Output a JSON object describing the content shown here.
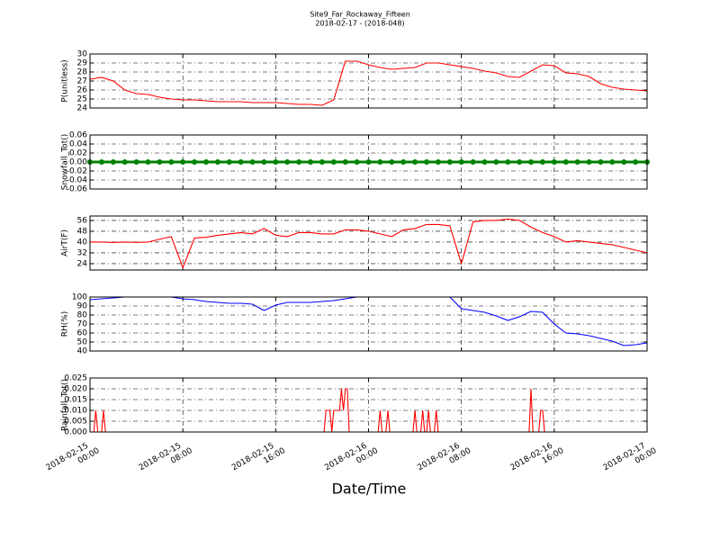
{
  "chart_data": [
    {
      "type": "line",
      "title": "Site9_Far_Rockaway_Fifteen",
      "subtitle": "2018-02-17 - (2018-048)",
      "ylabel": "P(unitless)",
      "color": "#ff0000",
      "grid": true,
      "xlim": [
        "2018-02-15 00:00",
        "2018-02-17 00:00"
      ],
      "ylim": [
        24,
        30
      ],
      "yticks": [
        24,
        25,
        26,
        27,
        28,
        29,
        30
      ],
      "x": [
        "2018-02-15 00:00",
        "2018-02-15 01:00",
        "2018-02-15 02:00",
        "2018-02-15 03:00",
        "2018-02-15 04:00",
        "2018-02-15 05:00",
        "2018-02-15 06:00",
        "2018-02-15 07:00",
        "2018-02-15 08:00",
        "2018-02-15 09:00",
        "2018-02-15 10:00",
        "2018-02-15 11:00",
        "2018-02-15 12:00",
        "2018-02-15 13:00",
        "2018-02-15 14:00",
        "2018-02-15 15:00",
        "2018-02-15 16:00",
        "2018-02-15 17:00",
        "2018-02-15 18:00",
        "2018-02-15 19:00",
        "2018-02-15 20:00",
        "2018-02-15 21:00",
        "2018-02-15 22:00",
        "2018-02-15 23:00",
        "2018-02-16 00:00",
        "2018-02-16 01:00",
        "2018-02-16 02:00",
        "2018-02-16 03:00",
        "2018-02-16 04:00",
        "2018-02-16 05:00",
        "2018-02-16 06:00",
        "2018-02-16 07:00",
        "2018-02-16 08:00",
        "2018-02-16 09:00",
        "2018-02-16 10:00",
        "2018-02-16 11:00",
        "2018-02-16 12:00",
        "2018-02-16 13:00",
        "2018-02-16 14:00",
        "2018-02-16 15:00",
        "2018-02-16 16:00",
        "2018-02-16 17:00",
        "2018-02-16 18:00",
        "2018-02-16 19:00",
        "2018-02-16 20:00",
        "2018-02-16 21:00",
        "2018-02-16 22:00",
        "2018-02-16 23:00",
        "2018-02-17 00:00"
      ],
      "values": [
        27.2,
        27.4,
        27.0,
        26.0,
        25.6,
        25.5,
        25.2,
        25.0,
        24.9,
        24.9,
        24.8,
        24.7,
        24.7,
        24.7,
        24.6,
        24.6,
        24.6,
        24.5,
        24.4,
        24.4,
        24.3,
        24.9,
        29.2,
        29.2,
        28.8,
        28.5,
        28.3,
        28.4,
        28.5,
        29.0,
        29.0,
        28.8,
        28.6,
        28.4,
        28.1,
        27.9,
        27.5,
        27.4,
        28.1,
        28.8,
        28.7,
        27.9,
        27.8,
        27.5,
        26.7,
        26.3,
        26.1,
        26.0,
        25.9
      ]
    },
    {
      "type": "line",
      "ylabel": "Snowfall_Tot()",
      "color": "#008000",
      "grid": true,
      "xlim": [
        "2018-02-15 00:00",
        "2018-02-17 00:00"
      ],
      "ylim": [
        -0.06,
        0.06
      ],
      "yticks": [
        -0.06,
        -0.04,
        -0.02,
        {
          "value": 0,
          "label": "0.00"
        },
        0.02,
        0.04,
        0.06
      ],
      "x": [
        "2018-02-15 00:00",
        "2018-02-15 01:00",
        "2018-02-15 02:00",
        "2018-02-15 03:00",
        "2018-02-15 04:00",
        "2018-02-15 05:00",
        "2018-02-15 06:00",
        "2018-02-15 07:00",
        "2018-02-15 08:00",
        "2018-02-15 09:00",
        "2018-02-15 10:00",
        "2018-02-15 11:00",
        "2018-02-15 12:00",
        "2018-02-15 13:00",
        "2018-02-15 14:00",
        "2018-02-15 15:00",
        "2018-02-15 16:00",
        "2018-02-15 17:00",
        "2018-02-15 18:00",
        "2018-02-15 19:00",
        "2018-02-15 20:00",
        "2018-02-15 21:00",
        "2018-02-15 22:00",
        "2018-02-15 23:00",
        "2018-02-16 00:00",
        "2018-02-16 01:00",
        "2018-02-16 02:00",
        "2018-02-16 03:00",
        "2018-02-16 04:00",
        "2018-02-16 05:00",
        "2018-02-16 06:00",
        "2018-02-16 07:00",
        "2018-02-16 08:00",
        "2018-02-16 09:00",
        "2018-02-16 10:00",
        "2018-02-16 11:00",
        "2018-02-16 12:00",
        "2018-02-16 13:00",
        "2018-02-16 14:00",
        "2018-02-16 15:00",
        "2018-02-16 16:00",
        "2018-02-16 17:00",
        "2018-02-16 18:00",
        "2018-02-16 19:00",
        "2018-02-16 20:00",
        "2018-02-16 21:00",
        "2018-02-16 22:00",
        "2018-02-16 23:00",
        "2018-02-17 00:00"
      ],
      "values": [
        0,
        0,
        0,
        0,
        0,
        0,
        0,
        0,
        0,
        0,
        0,
        0,
        0,
        0,
        0,
        0,
        0,
        0,
        0,
        0,
        0,
        0,
        0,
        0,
        0,
        0,
        0,
        0,
        0,
        0,
        0,
        0,
        0,
        0,
        0,
        0,
        0,
        0,
        0,
        0,
        0,
        0,
        0,
        0,
        0,
        0,
        0,
        0,
        0
      ]
    },
    {
      "type": "line",
      "ylabel": "AirT(F)",
      "color": "#ff0000",
      "grid": true,
      "xlim": [
        "2018-02-15 00:00",
        "2018-02-17 00:00"
      ],
      "ylim": [
        19.3,
        59.3
      ],
      "yticks": [
        24,
        32,
        40,
        48,
        56
      ],
      "x": [
        "2018-02-15 00:00",
        "2018-02-15 01:00",
        "2018-02-15 02:00",
        "2018-02-15 03:00",
        "2018-02-15 04:00",
        "2018-02-15 05:00",
        "2018-02-15 06:00",
        "2018-02-15 07:00",
        "2018-02-15 08:00",
        "2018-02-15 09:00",
        "2018-02-15 10:00",
        "2018-02-15 11:00",
        "2018-02-15 12:00",
        "2018-02-15 13:00",
        "2018-02-15 14:00",
        "2018-02-15 15:00",
        "2018-02-15 16:00",
        "2018-02-15 17:00",
        "2018-02-15 18:00",
        "2018-02-15 19:00",
        "2018-02-15 20:00",
        "2018-02-15 21:00",
        "2018-02-15 22:00",
        "2018-02-15 23:00",
        "2018-02-16 00:00",
        "2018-02-16 01:00",
        "2018-02-16 02:00",
        "2018-02-16 03:00",
        "2018-02-16 04:00",
        "2018-02-16 05:00",
        "2018-02-16 06:00",
        "2018-02-16 07:00",
        "2018-02-16 08:00",
        "2018-02-16 09:00",
        "2018-02-16 10:00",
        "2018-02-16 11:00",
        "2018-02-16 12:00",
        "2018-02-16 13:00",
        "2018-02-16 14:00",
        "2018-02-16 15:00",
        "2018-02-16 16:00",
        "2018-02-16 17:00",
        "2018-02-16 18:00",
        "2018-02-16 19:00",
        "2018-02-16 20:00",
        "2018-02-16 21:00",
        "2018-02-16 22:00",
        "2018-02-16 23:00",
        "2018-02-17 00:00"
      ],
      "values": [
        40,
        40,
        39.7,
        40,
        39.8,
        40,
        42,
        44,
        21,
        43,
        43.5,
        45,
        46,
        47,
        46,
        50,
        45,
        44,
        47,
        47,
        46,
        46,
        49,
        49,
        48,
        46,
        44,
        49,
        50,
        53,
        53,
        52,
        24,
        55,
        56,
        56,
        57,
        56,
        51,
        47,
        44,
        40,
        41,
        40,
        39,
        38,
        36,
        34,
        32
      ]
    },
    {
      "type": "line",
      "ylabel": "RH(%)",
      "color": "#0000ff",
      "grid": true,
      "xlim": [
        "2018-02-15 00:00",
        "2018-02-17 00:00"
      ],
      "ylim": [
        40,
        100
      ],
      "yticks": [
        40,
        50,
        60,
        70,
        80,
        90,
        100
      ],
      "x": [
        "2018-02-15 00:00",
        "2018-02-15 01:00",
        "2018-02-15 02:00",
        "2018-02-15 03:00",
        "2018-02-15 04:00",
        "2018-02-15 05:00",
        "2018-02-15 06:00",
        "2018-02-15 07:00",
        "2018-02-15 08:00",
        "2018-02-15 09:00",
        "2018-02-15 10:00",
        "2018-02-15 11:00",
        "2018-02-15 12:00",
        "2018-02-15 13:00",
        "2018-02-15 14:00",
        "2018-02-15 15:00",
        "2018-02-15 16:00",
        "2018-02-15 17:00",
        "2018-02-15 18:00",
        "2018-02-15 19:00",
        "2018-02-15 20:00",
        "2018-02-15 21:00",
        "2018-02-15 22:00",
        "2018-02-15 23:00",
        "2018-02-16 00:00",
        "2018-02-16 01:00",
        "2018-02-16 02:00",
        "2018-02-16 03:00",
        "2018-02-16 04:00",
        "2018-02-16 05:00",
        "2018-02-16 06:00",
        "2018-02-16 07:00",
        "2018-02-16 08:00",
        "2018-02-16 09:00",
        "2018-02-16 10:00",
        "2018-02-16 11:00",
        "2018-02-16 12:00",
        "2018-02-16 13:00",
        "2018-02-16 14:00",
        "2018-02-16 15:00",
        "2018-02-16 16:00",
        "2018-02-16 17:00",
        "2018-02-16 18:00",
        "2018-02-16 19:00",
        "2018-02-16 20:00",
        "2018-02-16 21:00",
        "2018-02-16 22:00",
        "2018-02-16 23:00",
        "2018-02-17 00:00"
      ],
      "values": [
        97,
        98,
        99,
        100,
        100,
        100,
        100,
        100,
        98,
        97,
        95,
        94,
        93,
        93,
        92,
        85,
        91,
        94,
        94,
        94,
        95,
        96,
        98,
        100,
        100,
        100,
        100,
        100,
        100,
        100,
        100,
        100,
        87,
        85,
        83,
        79,
        74,
        78,
        84,
        83,
        70,
        60,
        59,
        57,
        54,
        51,
        46,
        47,
        49
      ]
    },
    {
      "type": "line",
      "ylabel": "Rainfall_Tot()",
      "xlabel": "Date/Time",
      "color": "#ff0000",
      "grid": true,
      "xlim": [
        "2018-02-15 00:00",
        "2018-02-17 00:00"
      ],
      "ylim": [
        0,
        0.025
      ],
      "yticks": [
        {
          "value": 0,
          "label": "0.000"
        },
        0.005,
        {
          "value": 0.01,
          "label": "0.010"
        },
        0.015,
        {
          "value": 0.02,
          "label": "0.020"
        },
        0.025
      ],
      "xticks": [
        "2018-02-15 00:00",
        "2018-02-15 08:00",
        "2018-02-15 16:00",
        "2018-02-16 00:00",
        "2018-02-16 08:00",
        "2018-02-16 16:00",
        "2018-02-17 00:00"
      ],
      "x": [
        "2018-02-15 00:00",
        "2018-02-15 00:20",
        "2018-02-15 00:30",
        "2018-02-15 00:40",
        "2018-02-15 01:00",
        "2018-02-15 01:10",
        "2018-02-15 01:20",
        "2018-02-15 20:10",
        "2018-02-15 20:20",
        "2018-02-15 20:40",
        "2018-02-15 20:50",
        "2018-02-15 21:00",
        "2018-02-15 21:30",
        "2018-02-15 21:40",
        "2018-02-15 21:50",
        "2018-02-15 22:00",
        "2018-02-15 22:10",
        "2018-02-15 22:20",
        "2018-02-16 00:50",
        "2018-02-16 01:00",
        "2018-02-16 01:10",
        "2018-02-16 01:30",
        "2018-02-16 01:40",
        "2018-02-16 01:50",
        "2018-02-16 03:50",
        "2018-02-16 04:00",
        "2018-02-16 04:10",
        "2018-02-16 04:30",
        "2018-02-16 04:40",
        "2018-02-16 04:50",
        "2018-02-16 05:00",
        "2018-02-16 05:10",
        "2018-02-16 05:20",
        "2018-02-16 05:40",
        "2018-02-16 05:50",
        "2018-02-16 06:00",
        "2018-02-16 13:50",
        "2018-02-16 14:00",
        "2018-02-16 14:10",
        "2018-02-16 14:40",
        "2018-02-16 14:50",
        "2018-02-16 15:00",
        "2018-02-16 15:10",
        "2018-02-17 00:00"
      ],
      "values": [
        0,
        0,
        0.01,
        0,
        0,
        0.01,
        0,
        0,
        0.01,
        0.01,
        0,
        0.01,
        0.01,
        0.02,
        0.01,
        0.02,
        0.02,
        0,
        0,
        0.01,
        0,
        0,
        0.01,
        0,
        0,
        0.01,
        0,
        0,
        0.01,
        0,
        0,
        0.01,
        0,
        0,
        0.01,
        0,
        0,
        0.02,
        0,
        0,
        0.01,
        0.01,
        0,
        0
      ]
    }
  ]
}
